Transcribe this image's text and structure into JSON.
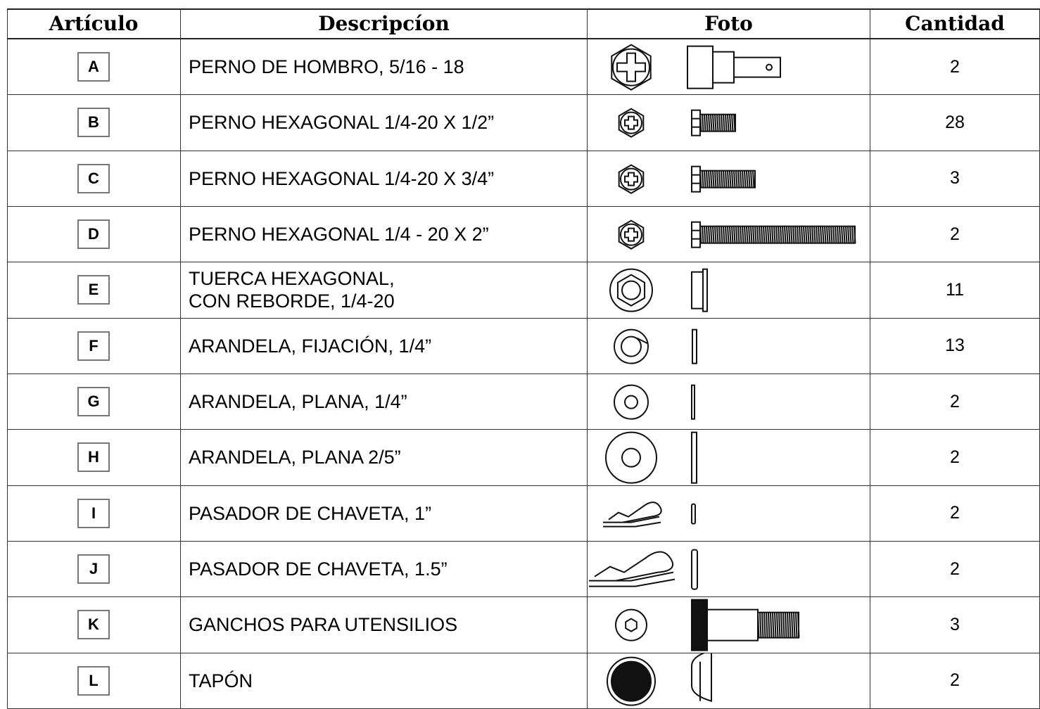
{
  "table": {
    "columns": [
      "Artículo",
      "Descripcíon",
      "Foto",
      "Cantidad"
    ],
    "rows": [
      {
        "item": "A",
        "description": [
          "PERNO DE HOMBRO, 5/16 - 18"
        ],
        "quantity": 2
      },
      {
        "item": "B",
        "description": [
          "PERNO HEXAGONAL 1/4-20 X 1/2”"
        ],
        "quantity": 28
      },
      {
        "item": "C",
        "description": [
          "PERNO HEXAGONAL 1/4-20 X 3/4”"
        ],
        "quantity": 3
      },
      {
        "item": "D",
        "description": [
          "PERNO HEXAGONAL 1/4 - 20 X 2”"
        ],
        "quantity": 2
      },
      {
        "item": "E",
        "description": [
          "TUERCA HEXAGONAL,",
          "CON REBORDE, 1/4-20"
        ],
        "quantity": 11
      },
      {
        "item": "F",
        "description": [
          "ARANDELA, FIJACIÓN, 1/4”"
        ],
        "quantity": 13
      },
      {
        "item": "G",
        "description": [
          "ARANDELA, PLANA, 1/4”"
        ],
        "quantity": 2
      },
      {
        "item": "H",
        "description": [
          "ARANDELA, PLANA 2/5”"
        ],
        "quantity": 2
      },
      {
        "item": "I",
        "description": [
          "PASADOR DE CHAVETA, 1”"
        ],
        "quantity": 2
      },
      {
        "item": "J",
        "description": [
          "PASADOR DE CHAVETA, 1.5”"
        ],
        "quantity": 2
      },
      {
        "item": "K",
        "description": [
          "GANCHOS PARA UTENSILIOS"
        ],
        "quantity": 3
      },
      {
        "item": "L",
        "description": [
          "TAPÓN"
        ],
        "quantity": 2
      }
    ]
  }
}
